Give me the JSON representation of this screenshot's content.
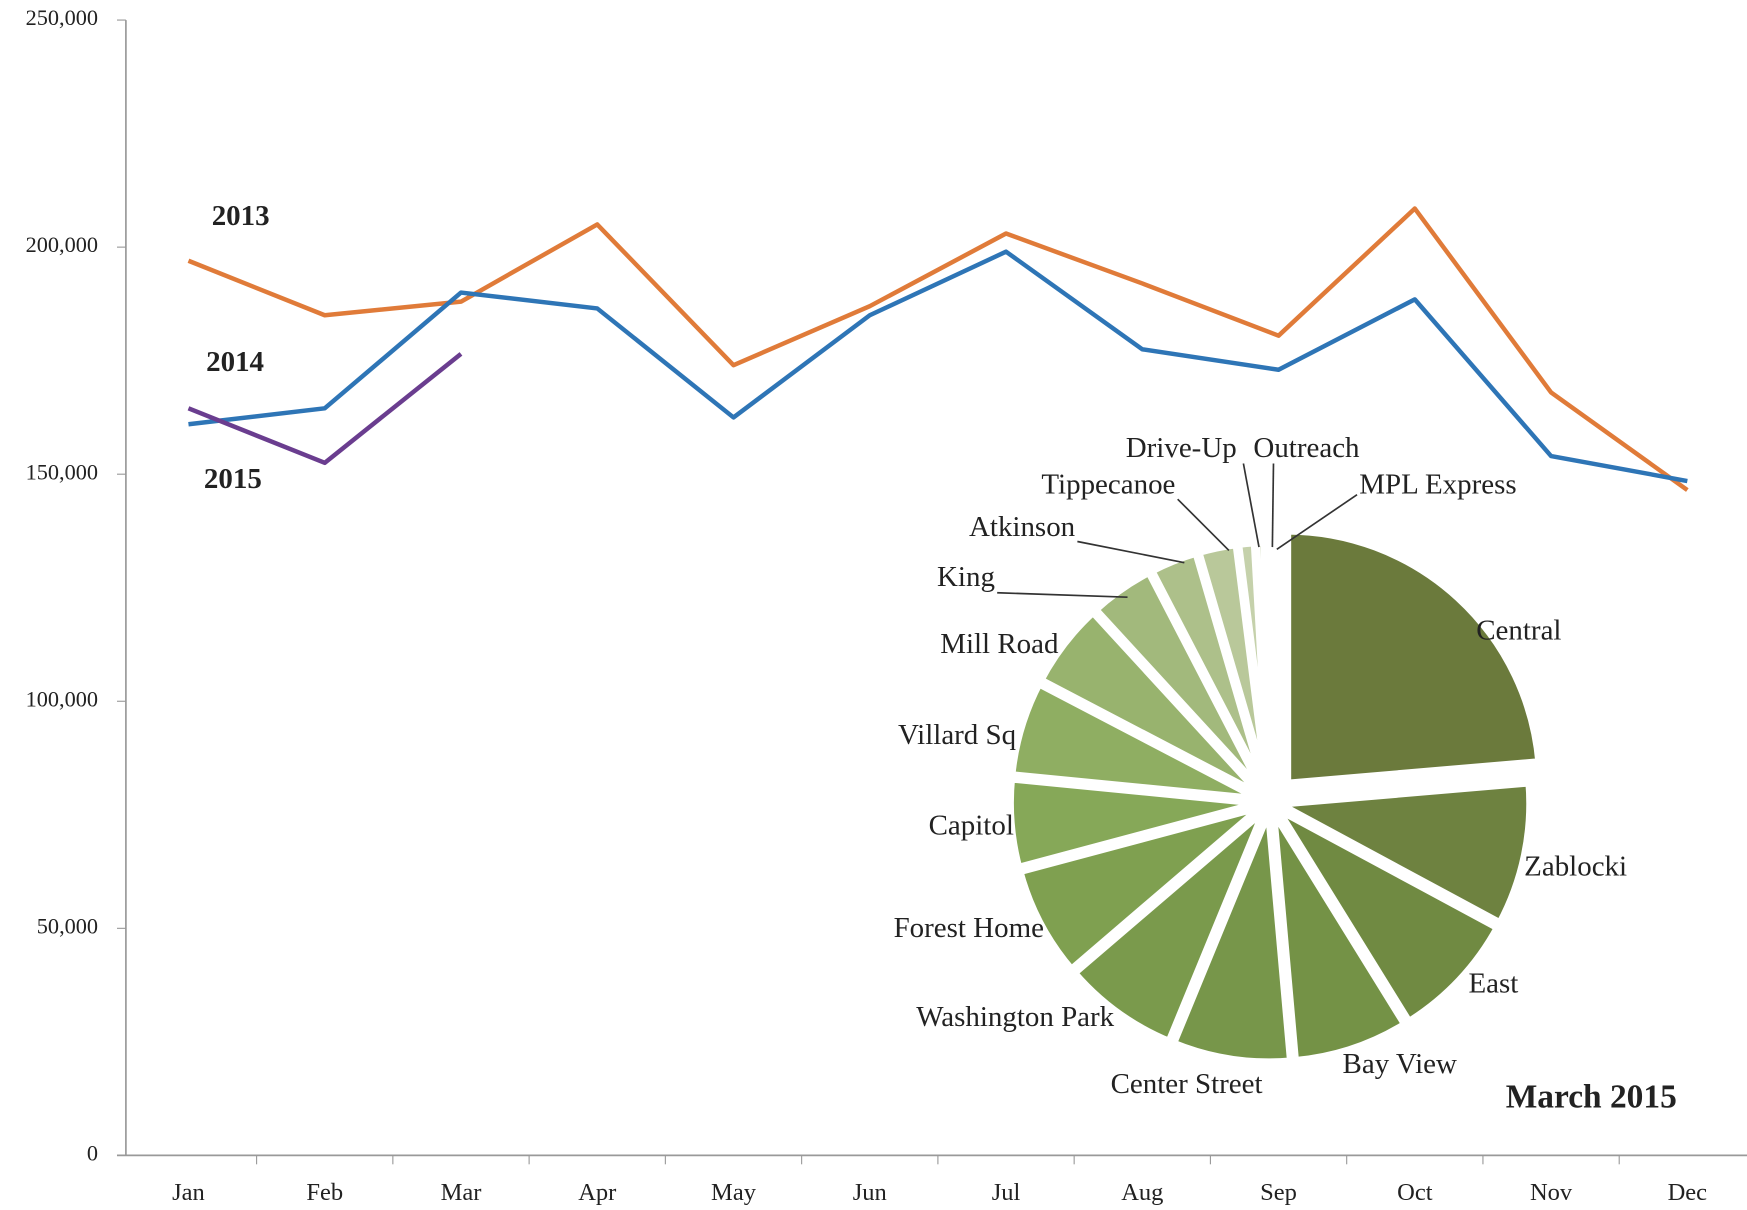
{
  "chart_data": [
    {
      "type": "line",
      "categories": [
        "Jan",
        "Feb",
        "Mar",
        "Apr",
        "May",
        "Jun",
        "Jul",
        "Aug",
        "Sep",
        "Oct",
        "Nov",
        "Dec"
      ],
      "series": [
        {
          "name": "2013",
          "color": "#e07b39",
          "values": [
            197000,
            185000,
            188000,
            205000,
            174000,
            187000,
            203000,
            192000,
            180500,
            208500,
            168000,
            146500
          ]
        },
        {
          "name": "2014",
          "color": "#2e75b6",
          "values": [
            161000,
            164500,
            190000,
            186500,
            162500,
            185000,
            199000,
            177500,
            173000,
            188500,
            154000,
            148500
          ]
        },
        {
          "name": "2015",
          "color": "#6a3d8f",
          "values": [
            164500,
            152500,
            176500,
            null,
            null,
            null,
            null,
            null,
            null,
            null,
            null,
            null
          ]
        }
      ],
      "ylim": [
        0,
        250000
      ],
      "yticks": [
        0,
        {
          "value": 50000,
          "label": "50,000"
        },
        {
          "value": 100000,
          "label": "100,000"
        },
        {
          "value": 150000,
          "label": "150,000"
        },
        {
          "value": 200000,
          "label": "200,000"
        },
        {
          "value": 250000,
          "label": "250,000"
        }
      ],
      "grid": false
    },
    {
      "type": "pie",
      "title": "March 2015",
      "categories": [
        "Central",
        "Zablocki",
        "East",
        "Bay View",
        "Center Street",
        "Washington Park",
        "Forest Home",
        "Capitol",
        "Villard Sq",
        "Mill Road",
        "King",
        "Atkinson",
        "Tippecanoe",
        "Drive-Up",
        "Outreach",
        "MPL Express"
      ],
      "values": [
        23.6,
        9.2,
        8.3,
        7.4,
        7.6,
        7.5,
        7.1,
        5.7,
        6.1,
        5.5,
        4.2,
        3.1,
        2.5,
        1.1,
        0.6,
        0.3
      ],
      "colors": [
        "#6b7a3c",
        "#6e8240",
        "#708a42",
        "#749246",
        "#77964a",
        "#7a9a4c",
        "#7fa050",
        "#86a858",
        "#8fae62",
        "#98b36e",
        "#a2b97c",
        "#adc08a",
        "#b9c89a",
        "#c5d1ab",
        "#d2dbbd",
        "#dfe5cf"
      ]
    }
  ]
}
